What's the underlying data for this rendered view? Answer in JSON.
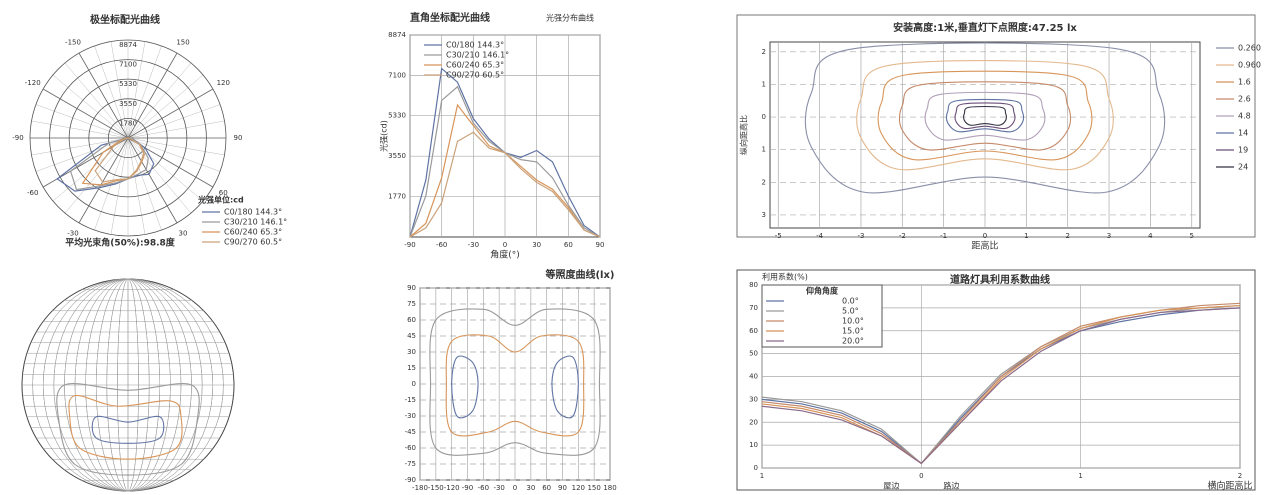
{
  "chart_data": [
    {
      "type": "polar",
      "title": "极坐标配光曲线",
      "x": [
        -90,
        -75,
        -60,
        -45,
        -30,
        -15,
        0,
        15,
        30,
        45,
        60,
        75,
        90
      ],
      "rlim": [
        0,
        8874
      ],
      "rticks": [
        1780,
        3550,
        5330,
        7100,
        8874
      ],
      "angleticks": [
        -150,
        -120,
        -90,
        -60,
        -30,
        30,
        60,
        90,
        120,
        150
      ],
      "legend_title": "光强单位:cd",
      "series": [
        {
          "name": "C0/180 144.3°",
          "color": "#5f73a3",
          "values": [
            0,
            2500,
            7400,
            6800,
            5200,
            4300,
            3700,
            3500,
            3800,
            3300,
            1800,
            500,
            0
          ]
        },
        {
          "name": "C30/210 146.1°",
          "color": "#9a9a9a",
          "values": [
            0,
            1800,
            6000,
            6600,
            5000,
            4200,
            3700,
            3400,
            3300,
            2600,
            1400,
            400,
            0
          ]
        },
        {
          "name": "C60/240 65.3°",
          "color": "#d8955a",
          "values": [
            0,
            600,
            2600,
            5800,
            4900,
            4000,
            3700,
            3100,
            2500,
            2100,
            1300,
            300,
            0
          ]
        },
        {
          "name": "C90/270 60.5°",
          "color": "#c9a27a",
          "values": [
            0,
            400,
            1500,
            4200,
            4600,
            3900,
            3700,
            3000,
            2400,
            2000,
            1200,
            300,
            0
          ]
        }
      ],
      "note": "平均光束角(50%):98.8度"
    },
    {
      "type": "line",
      "title": "直角坐标配光曲线",
      "subtitle": "光强分布曲线",
      "x": [
        -90,
        -75,
        -60,
        -45,
        -30,
        -15,
        0,
        15,
        30,
        45,
        60,
        75,
        90
      ],
      "xlim": [
        -90,
        90
      ],
      "xticks": [
        -90,
        -60,
        -30,
        0,
        30,
        60,
        90
      ],
      "ylim": [
        0,
        8874
      ],
      "yticks": [
        1770,
        3550,
        5330,
        7100,
        8874
      ],
      "xlabel": "角度(°)",
      "ylabel": "光强(cd)",
      "grid": true,
      "series": [
        {
          "name": "C0/180 144.3°",
          "color": "#5f73a3",
          "values": [
            0,
            2500,
            7400,
            6800,
            5200,
            4300,
            3700,
            3500,
            3800,
            3300,
            1800,
            500,
            0
          ]
        },
        {
          "name": "C30/210 146.1°",
          "color": "#9a9a9a",
          "values": [
            0,
            1800,
            6000,
            6600,
            5000,
            4200,
            3700,
            3400,
            3300,
            2600,
            1400,
            400,
            0
          ]
        },
        {
          "name": "C60/240 65.3°",
          "color": "#d8955a",
          "values": [
            0,
            600,
            2600,
            5800,
            4900,
            4000,
            3700,
            3100,
            2500,
            2100,
            1300,
            300,
            0
          ]
        },
        {
          "name": "C90/270 60.5°",
          "color": "#c9a27a",
          "values": [
            0,
            400,
            1500,
            4200,
            4600,
            3900,
            3700,
            3000,
            2400,
            2000,
            1200,
            300,
            0
          ]
        }
      ]
    },
    {
      "type": "contour",
      "title": "安装高度:1米,垂直灯下点照度:47.25 lx",
      "xlim": [
        -5.2,
        5.2
      ],
      "xticks": [
        -5,
        -4,
        -3,
        -2,
        -1,
        0,
        1,
        2,
        3,
        4,
        5
      ],
      "ylim": [
        -3.4,
        2.3
      ],
      "yticks": [
        2,
        1,
        0,
        {
          "value": -1,
          "label": "1"
        },
        {
          "value": -2,
          "label": "2"
        },
        {
          "value": -3,
          "label": "3"
        }
      ],
      "xlabel": "距高比",
      "ylabel": "纵向距高比",
      "grid": true,
      "series": [
        {
          "name": "0.260",
          "color": "#8a8fa8",
          "x": [
            -3.15,
            3.15,
            4.2,
            4.2,
            2.94,
            0,
            -2.94,
            -4.2,
            -4.2
          ],
          "y": [
            2.1,
            2.1,
            0.74,
            -0.92,
            -2.3,
            -1.84,
            -2.3,
            -0.92,
            0.74
          ]
        },
        {
          "name": "0.960",
          "color": "#e3b98f",
          "x": [
            -2.25,
            2.25,
            3,
            3,
            2.1,
            0,
            -2.1,
            -3,
            -3
          ],
          "y": [
            1.6,
            1.6,
            0.56,
            -0.64,
            -1.6,
            -1.28,
            -1.6,
            -0.64,
            0.56
          ]
        },
        {
          "name": "1.6",
          "color": "#d8955a",
          "x": [
            -1.88,
            1.88,
            2.5,
            2.5,
            1.75,
            0,
            -1.75,
            -2.5,
            -2.5
          ],
          "y": [
            1.3,
            1.3,
            0.46,
            -0.52,
            -1.3,
            -1.04,
            -1.3,
            -0.52,
            0.46
          ]
        },
        {
          "name": "2.6",
          "color": "#c58a6a",
          "x": [
            -1.5,
            1.5,
            2,
            2,
            1.4,
            0,
            -1.4,
            -2,
            -2
          ],
          "y": [
            1,
            1,
            0.35,
            -0.4,
            -1,
            -0.8,
            -1,
            -0.4,
            0.35
          ]
        },
        {
          "name": "4.8",
          "color": "#b0a0b8",
          "x": [
            -1.05,
            1.05,
            1.4,
            1.4,
            0.98,
            0,
            -0.98,
            -1.4,
            -1.4
          ],
          "y": [
            0.7,
            0.7,
            0.25,
            -0.28,
            -0.7,
            -0.56,
            -0.7,
            -0.28,
            0.25
          ]
        },
        {
          "name": "14",
          "color": "#5f73a3",
          "x": [
            -0.68,
            0.68,
            0.9,
            0.9,
            0.63,
            0,
            -0.63,
            -0.9,
            -0.9
          ],
          "y": [
            0.5,
            0.5,
            0.18,
            -0.18,
            -0.45,
            -0.36,
            -0.45,
            -0.18,
            0.18
          ]
        },
        {
          "name": "19",
          "color": "#6a4f78",
          "x": [
            -0.53,
            0.53,
            0.7,
            0.7,
            0.49,
            0,
            -0.49,
            -0.7,
            -0.7
          ],
          "y": [
            0.4,
            0.4,
            0.14,
            -0.14,
            -0.35,
            -0.28,
            -0.35,
            -0.14,
            0.14
          ]
        },
        {
          "name": "24",
          "color": "#333344",
          "x": [
            -0.38,
            0.38,
            0.5,
            0.5,
            0.35,
            0,
            -0.35,
            -0.5,
            -0.5
          ],
          "y": [
            0.3,
            0.3,
            0.11,
            -0.1,
            -0.25,
            -0.2,
            -0.25,
            -0.1,
            0.11
          ]
        }
      ]
    },
    {
      "type": "sphere",
      "series": [
        {
          "color": "#9a9a9a",
          "x": [
            -0.6,
            0,
            0.6,
            0.65,
            0.5,
            0,
            -0.5,
            -0.65
          ],
          "y": [
            0,
            -0.05,
            0,
            -0.35,
            -0.75,
            -0.85,
            -0.75,
            -0.35
          ]
        },
        {
          "color": "#d8955a",
          "x": [
            -0.5,
            -0.1,
            0.4,
            0.5,
            0.45,
            0,
            -0.45,
            -0.55
          ],
          "y": [
            -0.1,
            -0.2,
            -0.15,
            -0.3,
            -0.6,
            -0.7,
            -0.6,
            -0.3
          ]
        },
        {
          "color": "#5f73a3",
          "x": [
            -0.3,
            0,
            0.3,
            0.3,
            0,
            -0.3
          ],
          "y": [
            -0.3,
            -0.35,
            -0.3,
            -0.5,
            -0.55,
            -0.5
          ]
        }
      ]
    },
    {
      "type": "contour",
      "title": "等照度曲线(lx)",
      "xlim": [
        -180,
        180
      ],
      "xticks": [
        -180,
        -150,
        -120,
        -90,
        -60,
        -30,
        0,
        30,
        60,
        90,
        120,
        150,
        180
      ],
      "ylim": [
        -90,
        90
      ],
      "yticks": [
        -90,
        -75,
        -60,
        -45,
        -30,
        -15,
        0,
        15,
        30,
        45,
        60,
        75,
        90
      ],
      "grid": true,
      "series": [
        {
          "color": "#9a9a9a",
          "x": [
            -150,
            -60,
            0,
            60,
            150,
            160,
            150,
            60,
            0,
            -60,
            -150,
            -160
          ],
          "y": [
            60,
            70,
            55,
            70,
            60,
            0,
            -60,
            -65,
            -55,
            -65,
            -60,
            0
          ]
        },
        {
          "color": "#d8955a",
          "x": [
            -120,
            -50,
            0,
            50,
            120,
            130,
            120,
            50,
            0,
            -50,
            -120,
            -130
          ],
          "y": [
            40,
            45,
            30,
            45,
            40,
            0,
            -45,
            -45,
            -35,
            -45,
            -45,
            0
          ]
        },
        {
          "color": "#5f73a3",
          "x": [
            -110,
            -80,
            -70,
            -80,
            -110,
            -120
          ],
          "y": [
            25,
            20,
            0,
            -25,
            -30,
            0
          ]
        },
        {
          "color": "#5f73a3",
          "x": [
            110,
            80,
            70,
            80,
            110,
            120
          ],
          "y": [
            25,
            20,
            0,
            -25,
            -30,
            0
          ]
        }
      ]
    },
    {
      "type": "line",
      "title": "道路灯具利用系数曲线",
      "ylabel": "利用系数(%)",
      "xlabel": "横向距高比",
      "annotations": [
        "屋边",
        "路边"
      ],
      "legend_title": "仰角角度",
      "x": [
        -1,
        -0.75,
        -0.5,
        -0.25,
        0,
        0.25,
        0.5,
        0.75,
        1,
        1.25,
        1.5,
        1.75,
        2
      ],
      "xlim": [
        -1,
        2
      ],
      "xticks": [
        {
          "value": -1,
          "label": "1"
        },
        0,
        1,
        2
      ],
      "ylim": [
        0,
        80
      ],
      "yticks": [
        0,
        10,
        20,
        30,
        40,
        50,
        60,
        70,
        80
      ],
      "grid": true,
      "series": [
        {
          "name": "0.0°",
          "color": "#5f73a3",
          "values": [
            30,
            28,
            24,
            16,
            2,
            22,
            40,
            52,
            60,
            64,
            67,
            69,
            70
          ]
        },
        {
          "name": "5.0°",
          "color": "#9a9a9a",
          "values": [
            31,
            29,
            25,
            17,
            2,
            23,
            41,
            53,
            61,
            65,
            68,
            70,
            71
          ]
        },
        {
          "name": "10.0°",
          "color": "#c58a6a",
          "values": [
            29,
            27,
            23,
            15,
            2,
            21,
            40,
            53,
            62,
            66,
            69,
            71,
            72
          ]
        },
        {
          "name": "15.0°",
          "color": "#d8955a",
          "values": [
            28,
            26,
            22,
            14,
            2,
            20,
            39,
            52,
            61,
            66,
            69,
            70,
            71
          ]
        },
        {
          "name": "20.0°",
          "color": "#8a6a8a",
          "values": [
            27,
            25,
            21,
            14,
            2,
            20,
            38,
            51,
            60,
            65,
            68,
            69,
            70
          ]
        }
      ]
    }
  ]
}
